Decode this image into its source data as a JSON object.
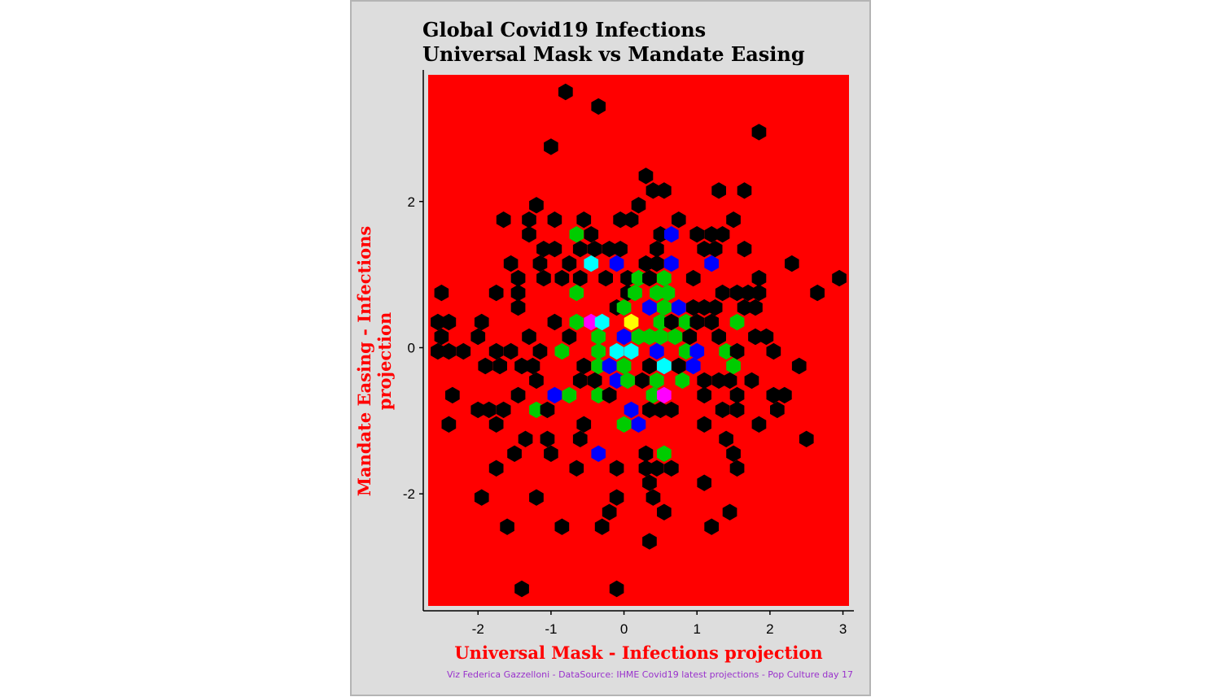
{
  "title_line1": "Global Covid19 Infections",
  "title_line2": "Universal Mask vs Mandate Easing",
  "xlabel": "Universal Mask - Infections projection",
  "ylabel": "Mandate Easing - Infections projection",
  "caption": "Viz Federica Gazzelloni - DataSource: IHME Covid19 latest projections - Pop Culture day 17",
  "colors": {
    "panel_background": "#ff0000",
    "plot_background": "#dddddd",
    "axis_title": "#ff0000",
    "caption": "#9932cc",
    "count_1": "#000000",
    "count_2": "#00cc00",
    "count_3": "#0000ff",
    "count_4": "#00ffff",
    "count_5": "#ff00ff",
    "count_6": "#ffff00"
  },
  "chart_data": {
    "type": "hexbin",
    "title": "Global Covid19 Infections / Universal Mask vs Mandate Easing",
    "xlabel": "Universal Mask - Infections projection",
    "ylabel": "Mandate Easing - Infections projection",
    "xlim": [
      -2.75,
      3.15
    ],
    "ylim": [
      -3.6,
      3.8
    ],
    "x_ticks": [
      -2,
      -1,
      0,
      1,
      2,
      3
    ],
    "y_ticks": [
      -2,
      0,
      2
    ],
    "grid": false,
    "legend": "none",
    "fill_by_count": [
      "#000000",
      "#00cc00",
      "#0000ff",
      "#00ffff",
      "#ff00ff",
      "#ffff00"
    ],
    "bins": [
      {
        "x": -0.8,
        "y": 3.5,
        "c": 1
      },
      {
        "x": -0.35,
        "y": 3.3,
        "c": 1
      },
      {
        "x": -1.0,
        "y": 2.75,
        "c": 1
      },
      {
        "x": 1.85,
        "y": 2.95,
        "c": 1
      },
      {
        "x": 0.3,
        "y": 2.35,
        "c": 1
      },
      {
        "x": 0.4,
        "y": 2.15,
        "c": 1
      },
      {
        "x": 0.55,
        "y": 2.15,
        "c": 1
      },
      {
        "x": 1.3,
        "y": 2.15,
        "c": 1
      },
      {
        "x": 1.65,
        "y": 2.15,
        "c": 1
      },
      {
        "x": -1.2,
        "y": 1.95,
        "c": 1
      },
      {
        "x": 0.2,
        "y": 1.95,
        "c": 1
      },
      {
        "x": -1.65,
        "y": 1.75,
        "c": 1
      },
      {
        "x": -1.3,
        "y": 1.75,
        "c": 1
      },
      {
        "x": -0.95,
        "y": 1.75,
        "c": 1
      },
      {
        "x": -0.55,
        "y": 1.75,
        "c": 1
      },
      {
        "x": -0.05,
        "y": 1.75,
        "c": 1
      },
      {
        "x": 0.1,
        "y": 1.75,
        "c": 1
      },
      {
        "x": 0.75,
        "y": 1.75,
        "c": 1
      },
      {
        "x": 1.5,
        "y": 1.75,
        "c": 1
      },
      {
        "x": -1.3,
        "y": 1.55,
        "c": 1
      },
      {
        "x": -0.65,
        "y": 1.55,
        "c": 2
      },
      {
        "x": -0.45,
        "y": 1.55,
        "c": 1
      },
      {
        "x": 0.5,
        "y": 1.55,
        "c": 1
      },
      {
        "x": 0.65,
        "y": 1.55,
        "c": 3
      },
      {
        "x": 1.0,
        "y": 1.55,
        "c": 1
      },
      {
        "x": 1.2,
        "y": 1.55,
        "c": 1
      },
      {
        "x": 1.35,
        "y": 1.55,
        "c": 1
      },
      {
        "x": -1.1,
        "y": 1.35,
        "c": 1
      },
      {
        "x": -0.95,
        "y": 1.35,
        "c": 1
      },
      {
        "x": -0.6,
        "y": 1.35,
        "c": 1
      },
      {
        "x": -0.4,
        "y": 1.35,
        "c": 1
      },
      {
        "x": -0.2,
        "y": 1.35,
        "c": 1
      },
      {
        "x": -0.05,
        "y": 1.35,
        "c": 1
      },
      {
        "x": 0.45,
        "y": 1.35,
        "c": 1
      },
      {
        "x": 1.1,
        "y": 1.35,
        "c": 1
      },
      {
        "x": 1.25,
        "y": 1.35,
        "c": 1
      },
      {
        "x": 1.65,
        "y": 1.35,
        "c": 1
      },
      {
        "x": -1.55,
        "y": 1.15,
        "c": 1
      },
      {
        "x": -1.15,
        "y": 1.15,
        "c": 1
      },
      {
        "x": -0.75,
        "y": 1.15,
        "c": 1
      },
      {
        "x": -0.45,
        "y": 1.15,
        "c": 4
      },
      {
        "x": -0.1,
        "y": 1.15,
        "c": 3
      },
      {
        "x": 0.3,
        "y": 1.15,
        "c": 1
      },
      {
        "x": 0.45,
        "y": 1.15,
        "c": 1
      },
      {
        "x": 0.65,
        "y": 1.15,
        "c": 3
      },
      {
        "x": 1.2,
        "y": 1.15,
        "c": 3
      },
      {
        "x": 2.3,
        "y": 1.15,
        "c": 1
      },
      {
        "x": -1.45,
        "y": 0.95,
        "c": 1
      },
      {
        "x": -1.1,
        "y": 0.95,
        "c": 1
      },
      {
        "x": -0.85,
        "y": 0.95,
        "c": 1
      },
      {
        "x": -0.6,
        "y": 0.95,
        "c": 1
      },
      {
        "x": -0.25,
        "y": 0.95,
        "c": 1
      },
      {
        "x": 0.05,
        "y": 0.95,
        "c": 1
      },
      {
        "x": 0.2,
        "y": 0.95,
        "c": 2
      },
      {
        "x": 0.35,
        "y": 0.95,
        "c": 1
      },
      {
        "x": 0.55,
        "y": 0.95,
        "c": 2
      },
      {
        "x": 0.95,
        "y": 0.95,
        "c": 1
      },
      {
        "x": 1.85,
        "y": 0.95,
        "c": 1
      },
      {
        "x": 2.95,
        "y": 0.95,
        "c": 1
      },
      {
        "x": -2.5,
        "y": 0.75,
        "c": 1
      },
      {
        "x": -1.75,
        "y": 0.75,
        "c": 1
      },
      {
        "x": -1.45,
        "y": 0.75,
        "c": 1
      },
      {
        "x": -0.65,
        "y": 0.75,
        "c": 2
      },
      {
        "x": 0.05,
        "y": 0.75,
        "c": 1
      },
      {
        "x": 0.15,
        "y": 0.75,
        "c": 2
      },
      {
        "x": 0.45,
        "y": 0.75,
        "c": 2
      },
      {
        "x": 0.6,
        "y": 0.75,
        "c": 2
      },
      {
        "x": 1.35,
        "y": 0.75,
        "c": 1
      },
      {
        "x": 1.55,
        "y": 0.75,
        "c": 1
      },
      {
        "x": 1.7,
        "y": 0.75,
        "c": 1
      },
      {
        "x": 1.85,
        "y": 0.75,
        "c": 1
      },
      {
        "x": 2.65,
        "y": 0.75,
        "c": 1
      },
      {
        "x": -1.45,
        "y": 0.55,
        "c": 1
      },
      {
        "x": -0.1,
        "y": 0.55,
        "c": 1
      },
      {
        "x": 0.0,
        "y": 0.55,
        "c": 2
      },
      {
        "x": 0.35,
        "y": 0.55,
        "c": 3
      },
      {
        "x": 0.55,
        "y": 0.55,
        "c": 2
      },
      {
        "x": 0.75,
        "y": 0.55,
        "c": 3
      },
      {
        "x": 0.95,
        "y": 0.55,
        "c": 1
      },
      {
        "x": 1.1,
        "y": 0.55,
        "c": 1
      },
      {
        "x": 1.25,
        "y": 0.55,
        "c": 1
      },
      {
        "x": 1.65,
        "y": 0.55,
        "c": 1
      },
      {
        "x": 1.8,
        "y": 0.55,
        "c": 1
      },
      {
        "x": -2.55,
        "y": 0.35,
        "c": 1
      },
      {
        "x": -2.4,
        "y": 0.35,
        "c": 1
      },
      {
        "x": -1.95,
        "y": 0.35,
        "c": 1
      },
      {
        "x": -0.95,
        "y": 0.35,
        "c": 1
      },
      {
        "x": -0.65,
        "y": 0.35,
        "c": 2
      },
      {
        "x": -0.45,
        "y": 0.35,
        "c": 5
      },
      {
        "x": -0.3,
        "y": 0.35,
        "c": 4
      },
      {
        "x": 0.1,
        "y": 0.35,
        "c": 6
      },
      {
        "x": 0.5,
        "y": 0.35,
        "c": 2
      },
      {
        "x": 0.65,
        "y": 0.35,
        "c": 1
      },
      {
        "x": 0.85,
        "y": 0.35,
        "c": 2
      },
      {
        "x": 1.0,
        "y": 0.35,
        "c": 1
      },
      {
        "x": 1.2,
        "y": 0.35,
        "c": 1
      },
      {
        "x": 1.55,
        "y": 0.35,
        "c": 2
      },
      {
        "x": -2.5,
        "y": 0.15,
        "c": 1
      },
      {
        "x": -2.0,
        "y": 0.15,
        "c": 1
      },
      {
        "x": -1.3,
        "y": 0.15,
        "c": 1
      },
      {
        "x": -0.75,
        "y": 0.15,
        "c": 1
      },
      {
        "x": -0.35,
        "y": 0.15,
        "c": 2
      },
      {
        "x": 0.0,
        "y": 0.15,
        "c": 3
      },
      {
        "x": 0.2,
        "y": 0.15,
        "c": 2
      },
      {
        "x": 0.35,
        "y": 0.15,
        "c": 2
      },
      {
        "x": 0.5,
        "y": 0.15,
        "c": 2
      },
      {
        "x": 0.7,
        "y": 0.15,
        "c": 2
      },
      {
        "x": 0.9,
        "y": 0.15,
        "c": 1
      },
      {
        "x": 1.3,
        "y": 0.15,
        "c": 1
      },
      {
        "x": 1.8,
        "y": 0.15,
        "c": 1
      },
      {
        "x": 1.95,
        "y": 0.15,
        "c": 1
      },
      {
        "x": -2.55,
        "y": -0.05,
        "c": 1
      },
      {
        "x": -2.4,
        "y": -0.05,
        "c": 1
      },
      {
        "x": -2.2,
        "y": -0.05,
        "c": 1
      },
      {
        "x": -1.75,
        "y": -0.05,
        "c": 1
      },
      {
        "x": -1.55,
        "y": -0.05,
        "c": 1
      },
      {
        "x": -1.15,
        "y": -0.05,
        "c": 1
      },
      {
        "x": -0.85,
        "y": -0.05,
        "c": 2
      },
      {
        "x": -0.35,
        "y": -0.05,
        "c": 2
      },
      {
        "x": -0.1,
        "y": -0.05,
        "c": 4
      },
      {
        "x": 0.1,
        "y": -0.05,
        "c": 4
      },
      {
        "x": 0.45,
        "y": -0.05,
        "c": 3
      },
      {
        "x": 0.85,
        "y": -0.05,
        "c": 2
      },
      {
        "x": 1.0,
        "y": -0.05,
        "c": 3
      },
      {
        "x": 1.4,
        "y": -0.05,
        "c": 2
      },
      {
        "x": 1.55,
        "y": -0.05,
        "c": 1
      },
      {
        "x": 2.05,
        "y": -0.05,
        "c": 1
      },
      {
        "x": -1.9,
        "y": -0.25,
        "c": 1
      },
      {
        "x": -1.7,
        "y": -0.25,
        "c": 1
      },
      {
        "x": -1.4,
        "y": -0.25,
        "c": 1
      },
      {
        "x": -1.25,
        "y": -0.25,
        "c": 1
      },
      {
        "x": -0.55,
        "y": -0.25,
        "c": 1
      },
      {
        "x": -0.35,
        "y": -0.25,
        "c": 2
      },
      {
        "x": -0.2,
        "y": -0.25,
        "c": 3
      },
      {
        "x": 0.0,
        "y": -0.25,
        "c": 2
      },
      {
        "x": 0.35,
        "y": -0.25,
        "c": 1
      },
      {
        "x": 0.55,
        "y": -0.25,
        "c": 4
      },
      {
        "x": 0.75,
        "y": -0.25,
        "c": 1
      },
      {
        "x": 0.95,
        "y": -0.25,
        "c": 3
      },
      {
        "x": 1.5,
        "y": -0.25,
        "c": 2
      },
      {
        "x": 2.4,
        "y": -0.25,
        "c": 1
      },
      {
        "x": -1.2,
        "y": -0.45,
        "c": 1
      },
      {
        "x": -0.6,
        "y": -0.45,
        "c": 1
      },
      {
        "x": -0.4,
        "y": -0.45,
        "c": 1
      },
      {
        "x": -0.1,
        "y": -0.45,
        "c": 3
      },
      {
        "x": 0.05,
        "y": -0.45,
        "c": 2
      },
      {
        "x": 0.25,
        "y": -0.45,
        "c": 1
      },
      {
        "x": 0.45,
        "y": -0.45,
        "c": 2
      },
      {
        "x": 0.8,
        "y": -0.45,
        "c": 2
      },
      {
        "x": 1.1,
        "y": -0.45,
        "c": 1
      },
      {
        "x": 1.3,
        "y": -0.45,
        "c": 1
      },
      {
        "x": 1.45,
        "y": -0.45,
        "c": 1
      },
      {
        "x": 1.75,
        "y": -0.45,
        "c": 1
      },
      {
        "x": -2.35,
        "y": -0.65,
        "c": 1
      },
      {
        "x": -1.45,
        "y": -0.65,
        "c": 1
      },
      {
        "x": -0.95,
        "y": -0.65,
        "c": 3
      },
      {
        "x": -0.75,
        "y": -0.65,
        "c": 2
      },
      {
        "x": -0.35,
        "y": -0.65,
        "c": 2
      },
      {
        "x": -0.2,
        "y": -0.65,
        "c": 1
      },
      {
        "x": 0.4,
        "y": -0.65,
        "c": 2
      },
      {
        "x": 0.55,
        "y": -0.65,
        "c": 5
      },
      {
        "x": 1.1,
        "y": -0.65,
        "c": 1
      },
      {
        "x": 1.55,
        "y": -0.65,
        "c": 1
      },
      {
        "x": 2.05,
        "y": -0.65,
        "c": 1
      },
      {
        "x": 2.2,
        "y": -0.65,
        "c": 1
      },
      {
        "x": -2.0,
        "y": -0.85,
        "c": 1
      },
      {
        "x": -1.85,
        "y": -0.85,
        "c": 1
      },
      {
        "x": -1.65,
        "y": -0.85,
        "c": 1
      },
      {
        "x": -1.2,
        "y": -0.85,
        "c": 2
      },
      {
        "x": -1.05,
        "y": -0.85,
        "c": 1
      },
      {
        "x": 0.1,
        "y": -0.85,
        "c": 3
      },
      {
        "x": 0.35,
        "y": -0.85,
        "c": 1
      },
      {
        "x": 0.5,
        "y": -0.85,
        "c": 1
      },
      {
        "x": 0.65,
        "y": -0.85,
        "c": 1
      },
      {
        "x": 1.35,
        "y": -0.85,
        "c": 1
      },
      {
        "x": 1.55,
        "y": -0.85,
        "c": 1
      },
      {
        "x": 2.1,
        "y": -0.85,
        "c": 1
      },
      {
        "x": -2.4,
        "y": -1.05,
        "c": 1
      },
      {
        "x": -1.75,
        "y": -1.05,
        "c": 1
      },
      {
        "x": -0.55,
        "y": -1.05,
        "c": 1
      },
      {
        "x": 0.0,
        "y": -1.05,
        "c": 2
      },
      {
        "x": 0.2,
        "y": -1.05,
        "c": 3
      },
      {
        "x": 1.1,
        "y": -1.05,
        "c": 1
      },
      {
        "x": 1.85,
        "y": -1.05,
        "c": 1
      },
      {
        "x": -1.35,
        "y": -1.25,
        "c": 1
      },
      {
        "x": -1.05,
        "y": -1.25,
        "c": 1
      },
      {
        "x": -0.6,
        "y": -1.25,
        "c": 1
      },
      {
        "x": 1.4,
        "y": -1.25,
        "c": 1
      },
      {
        "x": 2.5,
        "y": -1.25,
        "c": 1
      },
      {
        "x": -1.5,
        "y": -1.45,
        "c": 1
      },
      {
        "x": -1.0,
        "y": -1.45,
        "c": 1
      },
      {
        "x": -0.35,
        "y": -1.45,
        "c": 3
      },
      {
        "x": 0.3,
        "y": -1.45,
        "c": 1
      },
      {
        "x": 0.55,
        "y": -1.45,
        "c": 2
      },
      {
        "x": 1.5,
        "y": -1.45,
        "c": 1
      },
      {
        "x": -1.75,
        "y": -1.65,
        "c": 1
      },
      {
        "x": -0.65,
        "y": -1.65,
        "c": 1
      },
      {
        "x": -0.1,
        "y": -1.65,
        "c": 1
      },
      {
        "x": 0.3,
        "y": -1.65,
        "c": 1
      },
      {
        "x": 0.45,
        "y": -1.65,
        "c": 1
      },
      {
        "x": 0.65,
        "y": -1.65,
        "c": 1
      },
      {
        "x": 1.55,
        "y": -1.65,
        "c": 1
      },
      {
        "x": 0.35,
        "y": -1.85,
        "c": 1
      },
      {
        "x": 1.1,
        "y": -1.85,
        "c": 1
      },
      {
        "x": -1.95,
        "y": -2.05,
        "c": 1
      },
      {
        "x": -1.2,
        "y": -2.05,
        "c": 1
      },
      {
        "x": -0.1,
        "y": -2.05,
        "c": 1
      },
      {
        "x": 0.4,
        "y": -2.05,
        "c": 1
      },
      {
        "x": -0.2,
        "y": -2.25,
        "c": 1
      },
      {
        "x": 0.55,
        "y": -2.25,
        "c": 1
      },
      {
        "x": 1.45,
        "y": -2.25,
        "c": 1
      },
      {
        "x": -1.6,
        "y": -2.45,
        "c": 1
      },
      {
        "x": -0.85,
        "y": -2.45,
        "c": 1
      },
      {
        "x": -0.3,
        "y": -2.45,
        "c": 1
      },
      {
        "x": 1.2,
        "y": -2.45,
        "c": 1
      },
      {
        "x": 0.35,
        "y": -2.65,
        "c": 1
      },
      {
        "x": -1.4,
        "y": -3.3,
        "c": 1
      },
      {
        "x": -0.1,
        "y": -3.3,
        "c": 1
      }
    ]
  }
}
